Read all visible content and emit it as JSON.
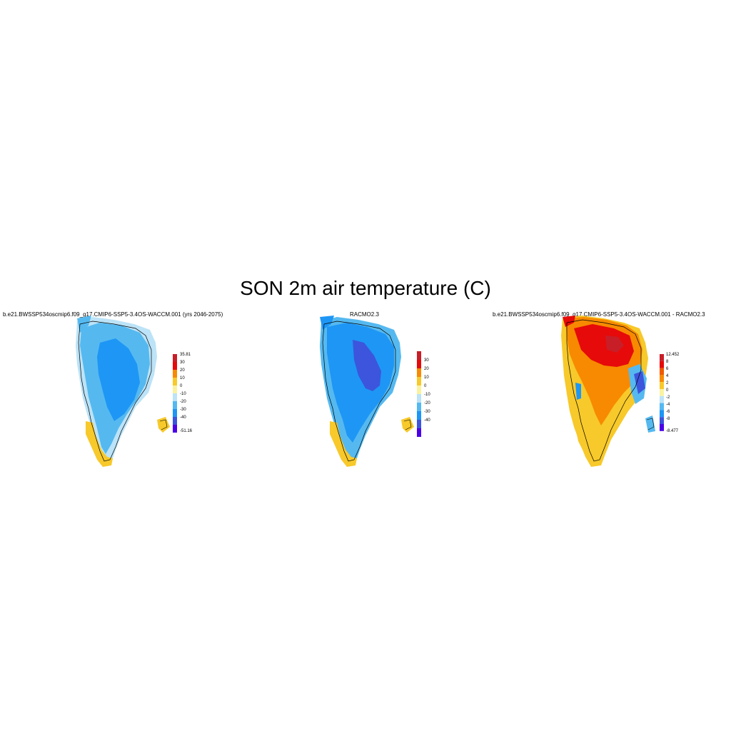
{
  "title": "SON 2m air temperature (C)",
  "palette": {
    "very_cold": "#4B00E8",
    "dark_blue": "#3C55DC",
    "mid_blue": "#1E96F5",
    "light_blue": "#55B9F0",
    "pale_blue": "#BCE3F7",
    "pale_yellow": "#FBF2A0",
    "yellow": "#F7C92A",
    "orange": "#F78A00",
    "dark_orange": "#F05A00",
    "red": "#E60A0A",
    "dark_red": "#C81E28"
  },
  "panels": [
    {
      "name": "model",
      "title": "b.e21.BWSSP534oscmip6.f09_g17.CMIP6-SSP5-3.4OS-WACCM.001 (yrs 2046-2075)",
      "colorbar": {
        "labels": [
          "35.81",
          "30",
          "20",
          "10",
          "0",
          "-10",
          "-20",
          "-30",
          "-40",
          "-51.16"
        ],
        "colors": [
          "#C81E28",
          "#E60A0A",
          "#F78A00",
          "#F7C92A",
          "#FBF2A0",
          "#BCE3F7",
          "#55B9F0",
          "#1E96F5",
          "#3C55DC",
          "#4B00E8"
        ]
      }
    },
    {
      "name": "racmo",
      "title": "RACMO2.3",
      "colorbar": {
        "labels": [
          "30",
          "20",
          "10",
          "0",
          "-10",
          "-20",
          "-30",
          "-40"
        ],
        "colors": [
          "#C81E28",
          "#E60A0A",
          "#F78A00",
          "#F7C92A",
          "#FBF2A0",
          "#BCE3F7",
          "#55B9F0",
          "#1E96F5",
          "#3C55DC",
          "#4B00E8"
        ]
      }
    },
    {
      "name": "difference",
      "title": "b.e21.BWSSP534oscmip6.f09_g17.CMIP6-SSP5-3.4OS-WACCM.001 - RACMO2.3",
      "colorbar": {
        "labels": [
          "12.452",
          "8",
          "6",
          "4",
          "2",
          "0",
          "-2",
          "-4",
          "-6",
          "-8",
          "-8.477"
        ],
        "colors": [
          "#C81E28",
          "#E60A0A",
          "#F05A00",
          "#F78A00",
          "#F7C92A",
          "#FBF2A0",
          "#BCE3F7",
          "#55B9F0",
          "#1E96F5",
          "#3C55DC",
          "#4B00E8"
        ]
      }
    }
  ]
}
